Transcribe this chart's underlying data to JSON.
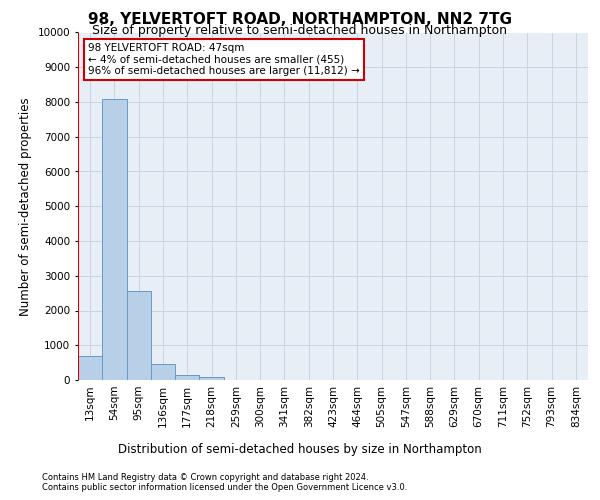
{
  "title": "98, YELVERTOFT ROAD, NORTHAMPTON, NN2 7TG",
  "subtitle": "Size of property relative to semi-detached houses in Northampton",
  "xlabel": "Distribution of semi-detached houses by size in Northampton",
  "ylabel": "Number of semi-detached properties",
  "footnote1": "Contains HM Land Registry data © Crown copyright and database right 2024.",
  "footnote2": "Contains public sector information licensed under the Open Government Licence v3.0.",
  "annotation_title": "98 YELVERTOFT ROAD: 47sqm",
  "annotation_line1": "← 4% of semi-detached houses are smaller (455)",
  "annotation_line2": "96% of semi-detached houses are larger (11,812) →",
  "bar_categories": [
    "13sqm",
    "54sqm",
    "95sqm",
    "136sqm",
    "177sqm",
    "218sqm",
    "259sqm",
    "300sqm",
    "341sqm",
    "382sqm",
    "423sqm",
    "464sqm",
    "505sqm",
    "547sqm",
    "588sqm",
    "629sqm",
    "670sqm",
    "711sqm",
    "752sqm",
    "793sqm",
    "834sqm"
  ],
  "bar_values": [
    700,
    8100,
    2550,
    450,
    130,
    80,
    0,
    0,
    0,
    0,
    0,
    0,
    0,
    0,
    0,
    0,
    0,
    0,
    0,
    0,
    0
  ],
  "bar_color": "#b8cfe8",
  "bar_edge_color": "#6699cc",
  "vline_color": "#cc0000",
  "vline_x": -0.5,
  "annotation_box_color": "#cc0000",
  "ylim": [
    0,
    10000
  ],
  "yticks": [
    0,
    1000,
    2000,
    3000,
    4000,
    5000,
    6000,
    7000,
    8000,
    9000,
    10000
  ],
  "background_color": "#ffffff",
  "plot_bg_color": "#e8eef5",
  "grid_color": "#c8d4e4",
  "title_fontsize": 11,
  "subtitle_fontsize": 9,
  "axis_label_fontsize": 8.5,
  "tick_fontsize": 7.5,
  "footnote_fontsize": 6
}
